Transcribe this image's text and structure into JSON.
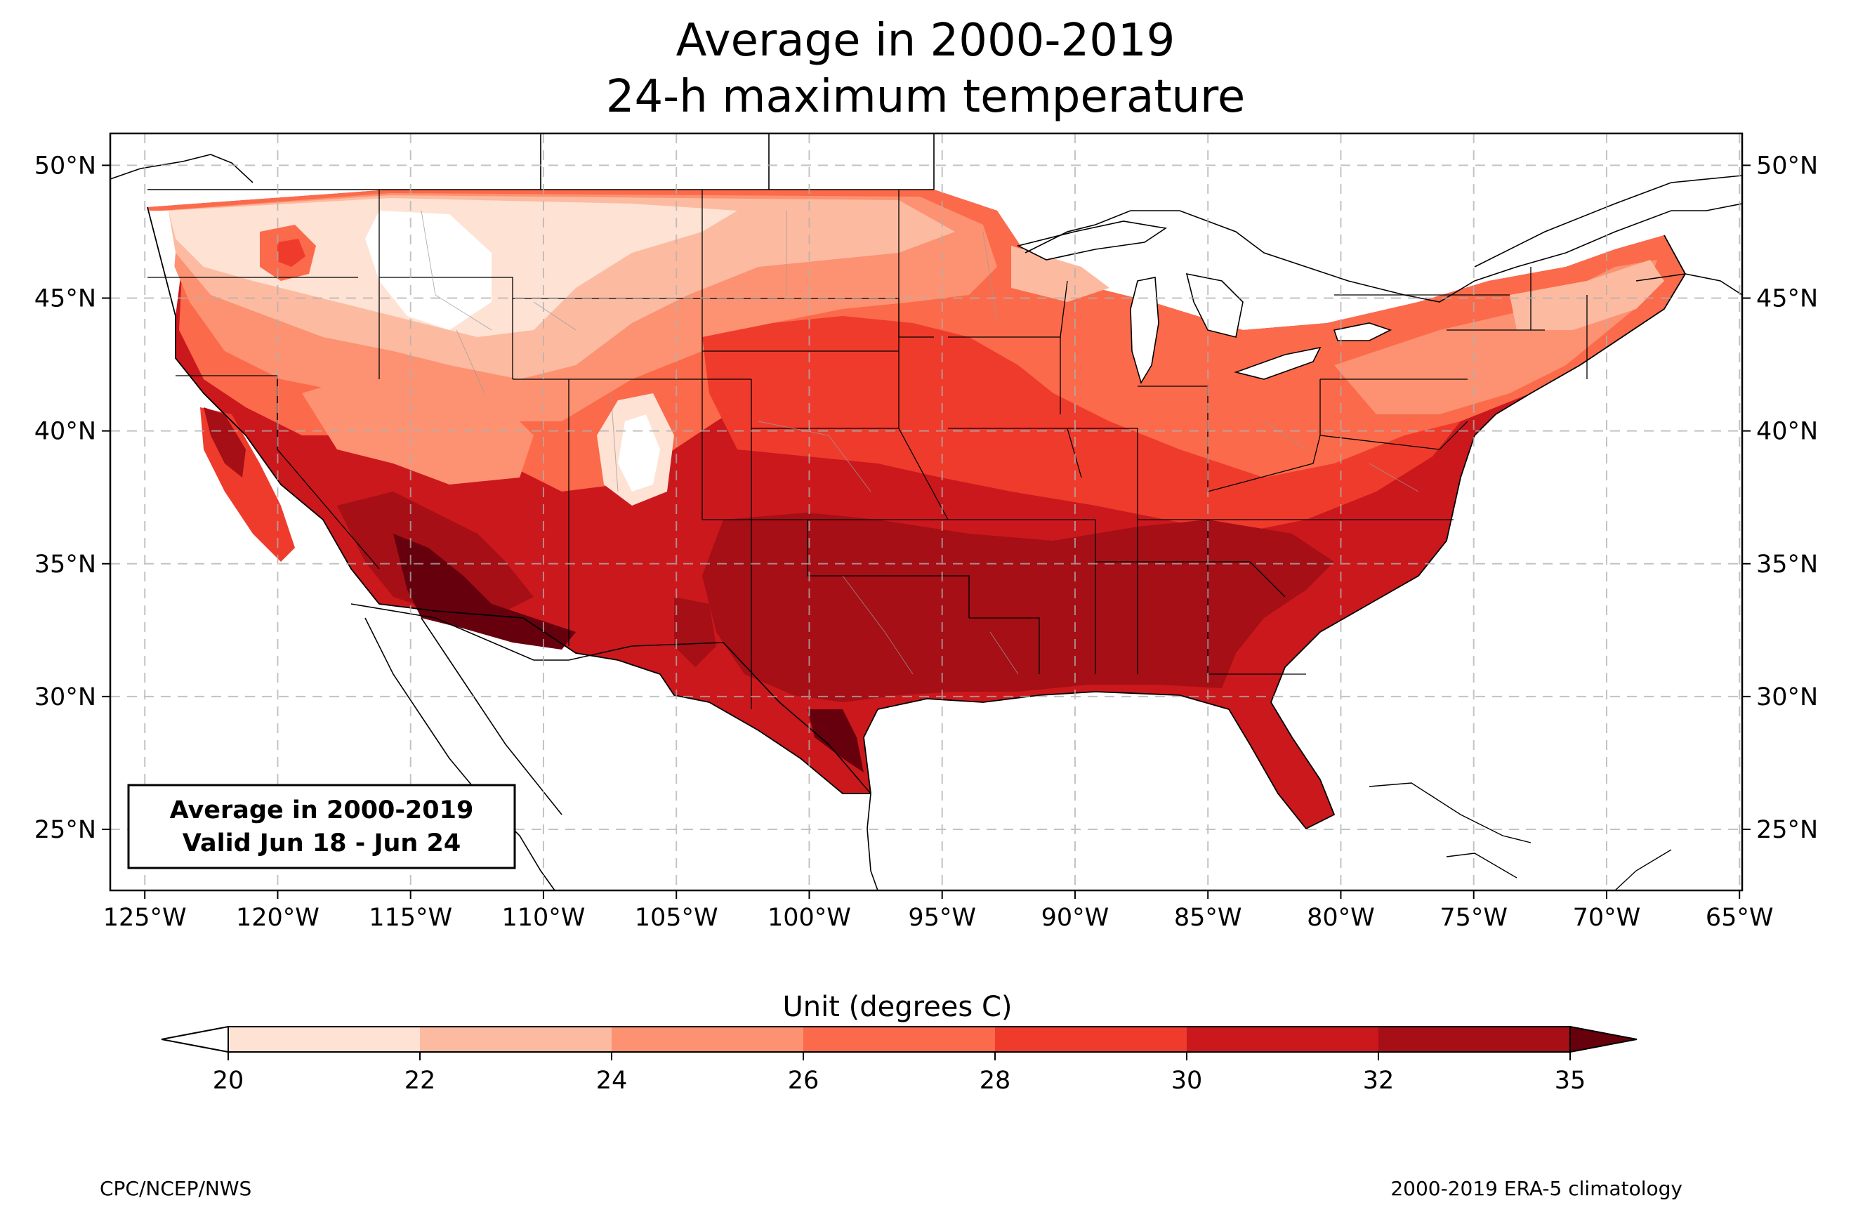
{
  "title_line1": "Average in 2000-2019",
  "title_line2": "24-h maximum temperature",
  "annotation": {
    "line1": "Average in 2000-2019",
    "line2": "Valid Jun 18 - Jun 24"
  },
  "map": {
    "projection": "PlateCarree",
    "lon_range": [
      -126.3,
      -64.9
    ],
    "lat_range": [
      22.7,
      51.2
    ],
    "gridlines": "dashed",
    "lon_ticks": [
      "125°W",
      "120°W",
      "115°W",
      "110°W",
      "105°W",
      "100°W",
      "95°W",
      "90°W",
      "85°W",
      "80°W",
      "75°W",
      "70°W",
      "65°W"
    ],
    "lat_ticks": [
      "50°N",
      "45°N",
      "40°N",
      "35°N",
      "30°N",
      "25°N"
    ]
  },
  "colorbar": {
    "label": "Unit (degrees C)",
    "levels": [
      "20",
      "22",
      "24",
      "26",
      "28",
      "30",
      "32",
      "35"
    ],
    "colors": [
      "#fee2d4",
      "#fcbba1",
      "#fc9272",
      "#fb6a4a",
      "#ef3b2c",
      "#cb181d",
      "#a50f15",
      "#67000d"
    ],
    "under_color": "#ffffff",
    "over_color": "#67000d",
    "extend": "both"
  },
  "footer_left": "CPC/NCEP/NWS",
  "footer_right": "2000-2019 ERA-5 climatology"
}
